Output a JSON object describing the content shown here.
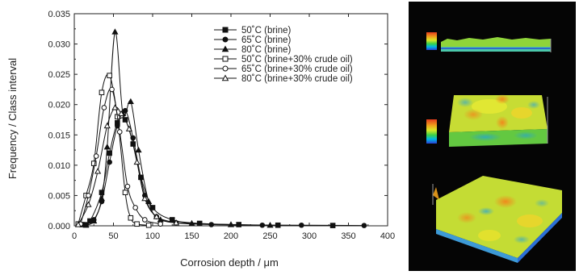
{
  "chart_data": {
    "type": "line",
    "xlabel": "Corrosion depth / μm",
    "ylabel": "Frequency / Class interval",
    "xlim": [
      0,
      400
    ],
    "ylim": [
      0,
      0.035
    ],
    "xticks": [
      "0",
      "50",
      "100",
      "150",
      "200",
      "250",
      "300",
      "350",
      "400"
    ],
    "yticks": [
      "0.000",
      "0.005",
      "0.010",
      "0.015",
      "0.020",
      "0.025",
      "0.030",
      "0.035"
    ],
    "legend_position": "top-right",
    "series": [
      {
        "name": "50˚C  (brine)",
        "marker": "square-filled",
        "points": [
          [
            10,
            0.0002
          ],
          [
            20,
            0.0008
          ],
          [
            35,
            0.0055
          ],
          [
            45,
            0.012
          ],
          [
            55,
            0.017
          ],
          [
            65,
            0.0175
          ],
          [
            75,
            0.0135
          ],
          [
            85,
            0.008
          ],
          [
            100,
            0.003
          ],
          [
            125,
            0.001
          ],
          [
            160,
            0.0004
          ],
          [
            210,
            0.0002
          ],
          [
            260,
            0.0001
          ],
          [
            330,
            5e-05
          ]
        ]
      },
      {
        "name": "65˚C  (brine)",
        "marker": "circle-filled",
        "points": [
          [
            15,
            0.0002
          ],
          [
            25,
            0.001
          ],
          [
            35,
            0.004
          ],
          [
            45,
            0.0105
          ],
          [
            55,
            0.0165
          ],
          [
            65,
            0.019
          ],
          [
            75,
            0.0145
          ],
          [
            90,
            0.005
          ],
          [
            105,
            0.0015
          ],
          [
            130,
            0.0005
          ],
          [
            175,
            0.0002
          ],
          [
            240,
            0.0001
          ],
          [
            290,
            0.0001
          ],
          [
            370,
            5e-05
          ]
        ]
      },
      {
        "name": "80˚C  (brine)",
        "marker": "triangle-filled",
        "points": [
          [
            15,
            0.0001
          ],
          [
            25,
            0.0008
          ],
          [
            35,
            0.0045
          ],
          [
            42,
            0.013
          ],
          [
            52,
            0.032
          ],
          [
            62,
            0.0185
          ],
          [
            72,
            0.0205
          ],
          [
            82,
            0.0125
          ],
          [
            95,
            0.004
          ],
          [
            110,
            0.001
          ],
          [
            150,
            0.0004
          ],
          [
            200,
            0.0002
          ],
          [
            250,
            0.0001
          ]
        ]
      },
      {
        "name": "50˚C  (brine+30% crude oil)",
        "marker": "square-open",
        "points": [
          [
            5,
            0.0003
          ],
          [
            15,
            0.005
          ],
          [
            25,
            0.0103
          ],
          [
            35,
            0.022
          ],
          [
            45,
            0.0248
          ],
          [
            55,
            0.018
          ],
          [
            65,
            0.0055
          ],
          [
            72,
            0.0013
          ],
          [
            80,
            0.0003
          ],
          [
            95,
            0.0001
          ]
        ]
      },
      {
        "name": "65˚C  (brine+30% crude oil)",
        "marker": "circle-open",
        "points": [
          [
            8,
            0.0003
          ],
          [
            18,
            0.005
          ],
          [
            28,
            0.0115
          ],
          [
            38,
            0.0195
          ],
          [
            48,
            0.0225
          ],
          [
            58,
            0.0155
          ],
          [
            68,
            0.0065
          ],
          [
            78,
            0.003
          ],
          [
            90,
            0.001
          ],
          [
            110,
            0.0003
          ]
        ]
      },
      {
        "name": "80˚C  (brine+30% crude oil)",
        "marker": "triangle-open",
        "points": [
          [
            5,
            0.0002
          ],
          [
            18,
            0.0035
          ],
          [
            30,
            0.009
          ],
          [
            42,
            0.0165
          ],
          [
            52,
            0.0195
          ],
          [
            60,
            0.0185
          ],
          [
            70,
            0.016
          ],
          [
            80,
            0.0105
          ],
          [
            90,
            0.0045
          ],
          [
            105,
            0.0015
          ],
          [
            130,
            0.0005
          ]
        ]
      }
    ]
  },
  "surface_panel": {
    "background": "#050505",
    "colormap": [
      "#2b3fd6",
      "#00b6e6",
      "#39d04a",
      "#d8e826",
      "#f0a01c",
      "#e23a1b"
    ]
  }
}
